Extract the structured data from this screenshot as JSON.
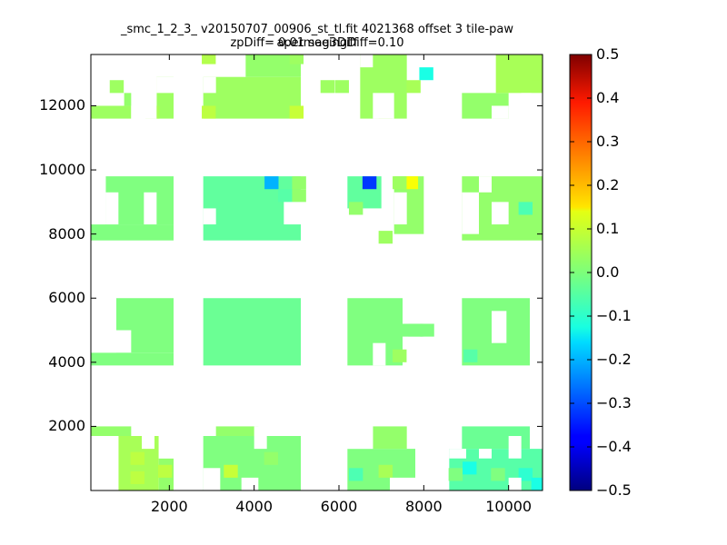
{
  "chart_data": {
    "type": "heatmap",
    "title_line1": "_smc_1_2_3_ v20150707_00906_st_tl.fit 4021368 offset 3 tile-paw apermag3Diff",
    "title_line2": "zpDiff= 0.01 seeingDiff=0.10",
    "xlabel": "",
    "ylabel": "",
    "xlim": [
      150,
      10800
    ],
    "ylim": [
      0,
      13600
    ],
    "x_ticks": [
      2000,
      4000,
      6000,
      8000,
      10000
    ],
    "x_tick_labels": [
      "2000",
      "4000",
      "6000",
      "8000",
      "10000"
    ],
    "y_ticks": [
      2000,
      4000,
      6000,
      8000,
      10000,
      12000
    ],
    "y_tick_labels": [
      "2000",
      "4000",
      "6000",
      "8000",
      "10000",
      "12000"
    ],
    "cell_size_x": 330,
    "cell_size_y": 400,
    "colormap": "jet",
    "colorbar": {
      "range": [
        -0.5,
        0.5
      ],
      "ticks": [
        0.5,
        0.4,
        0.3,
        0.2,
        0.1,
        0.0,
        -0.1,
        -0.2,
        -0.3,
        -0.4,
        -0.5
      ],
      "tick_labels": [
        "0.5",
        "0.4",
        "0.3",
        "0.2",
        "0.1",
        "0.0",
        "−0.1",
        "−0.2",
        "−0.3",
        "−0.4",
        "−0.5"
      ]
    },
    "grid": false,
    "regions": [
      {
        "x0": 150,
        "x1": 1100,
        "y0": 1700,
        "y1": 2000,
        "value": 0.02
      },
      {
        "x0": 800,
        "x1": 1750,
        "y0": 0,
        "y1": 1700,
        "value": 0.04
      },
      {
        "x0": 1750,
        "x1": 2100,
        "y0": 0,
        "y1": 1000,
        "value": 0.02
      },
      {
        "x0": 2800,
        "x1": 5100,
        "y0": 0,
        "y1": 1700,
        "value": 0.0
      },
      {
        "x0": 3100,
        "x1": 4100,
        "y0": 1700,
        "y1": 2000,
        "value": 0.02
      },
      {
        "x0": 6200,
        "x1": 7800,
        "y0": 0,
        "y1": 1300,
        "value": 0.0
      },
      {
        "x0": 6800,
        "x1": 7600,
        "y0": 1300,
        "y1": 2000,
        "value": 0.02
      },
      {
        "x0": 8600,
        "x1": 10800,
        "y0": 0,
        "y1": 1300,
        "value": -0.04
      },
      {
        "x0": 8900,
        "x1": 10500,
        "y0": 1300,
        "y1": 2000,
        "value": -0.02
      },
      {
        "x0": 150,
        "x1": 2100,
        "y0": 3900,
        "y1": 4300,
        "value": 0.0
      },
      {
        "x0": 750,
        "x1": 2100,
        "y0": 4300,
        "y1": 6000,
        "value": 0.0
      },
      {
        "x0": 2800,
        "x1": 5100,
        "y0": 3900,
        "y1": 6000,
        "value": -0.02
      },
      {
        "x0": 6200,
        "x1": 7500,
        "y0": 3900,
        "y1": 6000,
        "value": 0.0
      },
      {
        "x0": 7500,
        "x1": 8000,
        "y0": 4800,
        "y1": 5200,
        "value": 0.0
      },
      {
        "x0": 8900,
        "x1": 10500,
        "y0": 3900,
        "y1": 6000,
        "value": 0.0
      },
      {
        "x0": 150,
        "x1": 2100,
        "y0": 7800,
        "y1": 8300,
        "value": 0.0
      },
      {
        "x0": 500,
        "x1": 2100,
        "y0": 8300,
        "y1": 9800,
        "value": 0.0
      },
      {
        "x0": 2800,
        "x1": 5100,
        "y0": 7800,
        "y1": 9800,
        "value": -0.03
      },
      {
        "x0": 6200,
        "x1": 7000,
        "y0": 8800,
        "y1": 9800,
        "value": -0.03
      },
      {
        "x0": 7300,
        "x1": 8000,
        "y0": 8000,
        "y1": 9800,
        "value": 0.02
      },
      {
        "x0": 8900,
        "x1": 10800,
        "y0": 7800,
        "y1": 9800,
        "value": 0.02
      },
      {
        "x0": 150,
        "x1": 1100,
        "y0": 11600,
        "y1": 12000,
        "value": 0.03
      },
      {
        "x0": 1700,
        "x1": 2100,
        "y0": 11600,
        "y1": 12900,
        "value": 0.03
      },
      {
        "x0": 2800,
        "x1": 5100,
        "y0": 11600,
        "y1": 12900,
        "value": 0.03
      },
      {
        "x0": 3800,
        "x1": 5100,
        "y0": 12900,
        "y1": 13600,
        "value": 0.02
      },
      {
        "x0": 6500,
        "x1": 7600,
        "y0": 11600,
        "y1": 13600,
        "value": 0.03
      },
      {
        "x0": 8900,
        "x1": 10000,
        "y0": 11600,
        "y1": 12400,
        "value": 0.02
      },
      {
        "x0": 9700,
        "x1": 10800,
        "y0": 12400,
        "y1": 13600,
        "value": 0.04
      }
    ],
    "cells": [
      {
        "x": 1600,
        "y": 11800,
        "value": 0.04
      },
      {
        "x": 1100,
        "y": 12200,
        "value": 0.02
      },
      {
        "x": 760,
        "y": 12600,
        "value": 0.03
      },
      {
        "x": 2930,
        "y": 13500,
        "value": 0.05
      },
      {
        "x": 2930,
        "y": 11800,
        "value": 0.06
      },
      {
        "x": 5000,
        "y": 11800,
        "value": 0.07
      },
      {
        "x": 5000,
        "y": 13500,
        "value": 0.03
      },
      {
        "x": 5730,
        "y": 12600,
        "value": 0.03
      },
      {
        "x": 6070,
        "y": 12600,
        "value": 0.03
      },
      {
        "x": 7100,
        "y": 11800,
        "value": 0.06
      },
      {
        "x": 7760,
        "y": 12600,
        "value": 0.04
      },
      {
        "x": 8060,
        "y": 13000,
        "value": -0.1
      },
      {
        "x": 10700,
        "y": 12600,
        "value": 0.04
      },
      {
        "x": 4410,
        "y": 9600,
        "value": -0.2
      },
      {
        "x": 4730,
        "y": 9200,
        "value": -0.04
      },
      {
        "x": 5060,
        "y": 9600,
        "value": 0.02
      },
      {
        "x": 5060,
        "y": 9200,
        "value": 0.02
      },
      {
        "x": 6720,
        "y": 9600,
        "value": -0.32
      },
      {
        "x": 7700,
        "y": 9600,
        "value": 0.12
      },
      {
        "x": 6400,
        "y": 8800,
        "value": 0.02
      },
      {
        "x": 7100,
        "y": 7900,
        "value": 0.03
      },
      {
        "x": 7430,
        "y": 9600,
        "value": 0.03
      },
      {
        "x": 9100,
        "y": 8400,
        "value": 0.03
      },
      {
        "x": 10400,
        "y": 8800,
        "value": -0.05
      },
      {
        "x": 7800,
        "y": 5000,
        "value": 0.0
      },
      {
        "x": 8080,
        "y": 5000,
        "value": 0.0
      },
      {
        "x": 7430,
        "y": 4200,
        "value": 0.03
      },
      {
        "x": 9100,
        "y": 4200,
        "value": -0.04
      },
      {
        "x": 3450,
        "y": 600,
        "value": 0.07
      },
      {
        "x": 4400,
        "y": 1000,
        "value": 0.02
      },
      {
        "x": 6400,
        "y": 500,
        "value": -0.05
      },
      {
        "x": 7100,
        "y": 600,
        "value": 0.04
      },
      {
        "x": 8750,
        "y": 500,
        "value": 0.0
      },
      {
        "x": 9080,
        "y": 700,
        "value": -0.1
      },
      {
        "x": 9750,
        "y": 500,
        "value": 0.0
      },
      {
        "x": 10400,
        "y": 500,
        "value": -0.08
      },
      {
        "x": 10700,
        "y": 200,
        "value": -0.1
      },
      {
        "x": 1250,
        "y": 400,
        "value": 0.06
      },
      {
        "x": 1250,
        "y": 1000,
        "value": 0.06
      },
      {
        "x": 1900,
        "y": 600,
        "value": 0.06
      }
    ],
    "holes": [
      {
        "x0": 150,
        "x1": 800,
        "y0": 0,
        "y1": 1700
      },
      {
        "x0": 1750,
        "x1": 2100,
        "y0": 1000,
        "y1": 1700
      },
      {
        "x0": 1350,
        "x1": 1650,
        "y0": 1300,
        "y1": 1700
      },
      {
        "x0": 4000,
        "x1": 4300,
        "y0": 1300,
        "y1": 2000
      },
      {
        "x0": 2800,
        "x1": 3200,
        "y0": 0,
        "y1": 700
      },
      {
        "x0": 3700,
        "x1": 4100,
        "y0": 0,
        "y1": 400
      },
      {
        "x0": 6200,
        "x1": 6800,
        "y0": 1300,
        "y1": 2000
      },
      {
        "x0": 7200,
        "x1": 7800,
        "y0": 0,
        "y1": 400
      },
      {
        "x0": 8600,
        "x1": 9000,
        "y0": 1000,
        "y1": 1300
      },
      {
        "x0": 9300,
        "x1": 9600,
        "y0": 1000,
        "y1": 1300
      },
      {
        "x0": 10000,
        "x1": 10300,
        "y0": 1000,
        "y1": 1700
      },
      {
        "x0": 10000,
        "x1": 10300,
        "y0": 0,
        "y1": 400
      },
      {
        "x0": 150,
        "x1": 750,
        "y0": 4300,
        "y1": 6000
      },
      {
        "x0": 750,
        "x1": 1100,
        "y0": 4300,
        "y1": 5000
      },
      {
        "x0": 6800,
        "x1": 7100,
        "y0": 3900,
        "y1": 4600
      },
      {
        "x0": 9600,
        "x1": 9950,
        "y0": 4600,
        "y1": 5600
      },
      {
        "x0": 150,
        "x1": 500,
        "y0": 8300,
        "y1": 9800
      },
      {
        "x0": 500,
        "x1": 800,
        "y0": 8300,
        "y1": 9300
      },
      {
        "x0": 1400,
        "x1": 1700,
        "y0": 8300,
        "y1": 9300
      },
      {
        "x0": 2800,
        "x1": 3100,
        "y0": 8300,
        "y1": 8800
      },
      {
        "x0": 4700,
        "x1": 5100,
        "y0": 8300,
        "y1": 9000
      },
      {
        "x0": 7300,
        "x1": 7600,
        "y0": 8300,
        "y1": 9300
      },
      {
        "x0": 8900,
        "x1": 9300,
        "y0": 8000,
        "y1": 9300
      },
      {
        "x0": 9300,
        "x1": 9600,
        "y0": 9300,
        "y1": 9800
      },
      {
        "x0": 9600,
        "x1": 10000,
        "y0": 8300,
        "y1": 9000
      },
      {
        "x0": 1100,
        "x1": 1700,
        "y0": 11600,
        "y1": 12900
      },
      {
        "x0": 1700,
        "x1": 2100,
        "y0": 12400,
        "y1": 12900
      },
      {
        "x0": 2800,
        "x1": 3100,
        "y0": 12400,
        "y1": 12900
      },
      {
        "x0": 6800,
        "x1": 7300,
        "y0": 11600,
        "y1": 12400
      },
      {
        "x0": 6500,
        "x1": 6800,
        "y0": 13200,
        "y1": 13600
      },
      {
        "x0": 9600,
        "x1": 10000,
        "y0": 11600,
        "y1": 12000
      },
      {
        "x0": 10300,
        "x1": 10800,
        "y0": 11600,
        "y1": 12400
      }
    ]
  }
}
